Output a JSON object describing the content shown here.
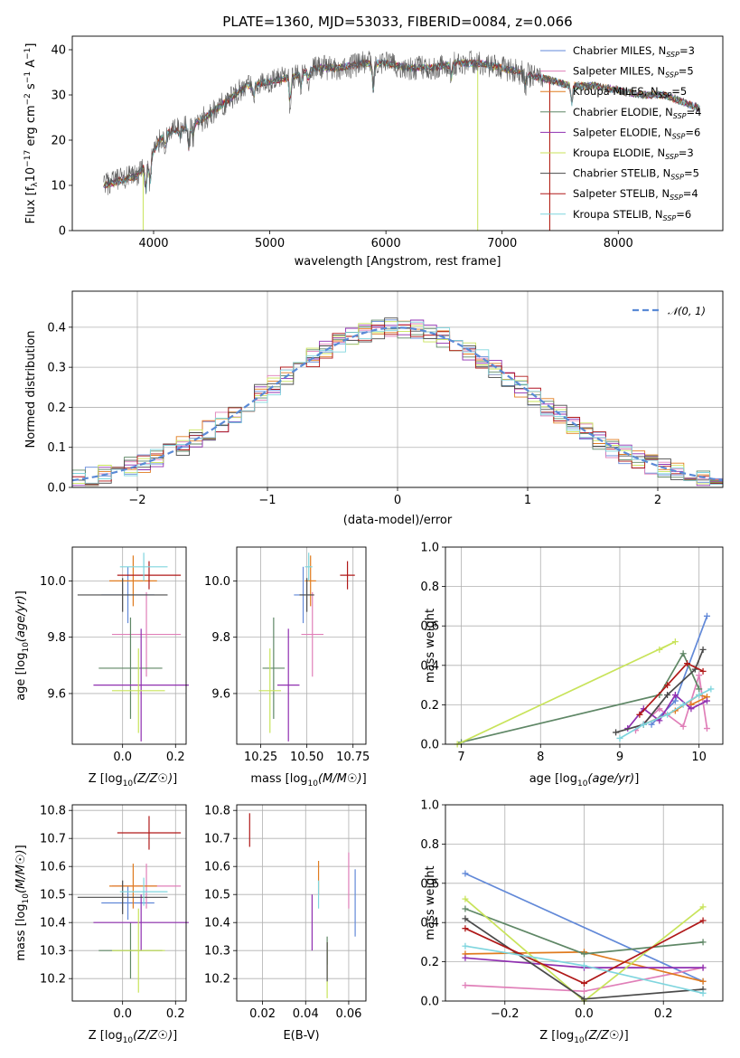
{
  "title": "PLATE=1360, MJD=53033, FIBERID=0084, z=0.066",
  "colors": {
    "chabrier_miles": "#6289d8",
    "salpeter_miles": "#e07fb8",
    "kroupa_miles": "#e07b1f",
    "chabrier_elodie": "#5f8766",
    "salpeter_elodie": "#8f2fb0",
    "kroupa_elodie": "#c8e35a",
    "chabrier_stelib": "#4a4a4a",
    "salpeter_stelib": "#b01919",
    "kroupa_stelib": "#7fd5de"
  },
  "legend": [
    {
      "text": "Chabrier MILES, N",
      "sub": "SSP",
      "tail": "=3",
      "color_key": "chabrier_miles"
    },
    {
      "text": "Salpeter MILES, N",
      "sub": "SSP",
      "tail": "=5",
      "color_key": "salpeter_miles"
    },
    {
      "text": "Kroupa MILES, N",
      "sub": "SSP",
      "tail": "=5",
      "color_key": "kroupa_miles"
    },
    {
      "text": "Chabrier ELODIE, N",
      "sub": "SSP",
      "tail": "=4",
      "color_key": "chabrier_elodie"
    },
    {
      "text": "Salpeter ELODIE, N",
      "sub": "SSP",
      "tail": "=6",
      "color_key": "salpeter_elodie"
    },
    {
      "text": "Kroupa ELODIE, N",
      "sub": "SSP",
      "tail": "=3",
      "color_key": "kroupa_elodie"
    },
    {
      "text": "Chabrier STELIB, N",
      "sub": "SSP",
      "tail": "=5",
      "color_key": "chabrier_stelib"
    },
    {
      "text": "Salpeter STELIB, N",
      "sub": "SSP",
      "tail": "=4",
      "color_key": "salpeter_stelib"
    },
    {
      "text": "Kroupa STELIB, N",
      "sub": "SSP",
      "tail": "=6",
      "color_key": "kroupa_stelib"
    }
  ],
  "chart_data": [
    {
      "type": "line",
      "name": "spectrum",
      "xlabel": "wavelength [Angstrom, rest frame]",
      "ylabel": "Flux [fλ10⁻¹⁷ erg cm⁻² s⁻¹ A⁻¹]",
      "xlim": [
        3300,
        8900
      ],
      "ylim": [
        0,
        43
      ],
      "xticks": [
        "4000",
        "5000",
        "6000",
        "7000",
        "8000"
      ],
      "yticks": [
        "0",
        "10",
        "20",
        "30",
        "40"
      ],
      "continuum": [
        [
          3570,
          10
        ],
        [
          3700,
          11
        ],
        [
          3850,
          12
        ],
        [
          3950,
          15
        ],
        [
          4050,
          20
        ],
        [
          4150,
          22
        ],
        [
          4300,
          23
        ],
        [
          4450,
          25
        ],
        [
          4600,
          28
        ],
        [
          4800,
          32
        ],
        [
          5000,
          33
        ],
        [
          5200,
          34
        ],
        [
          5400,
          36
        ],
        [
          5600,
          36
        ],
        [
          5800,
          37
        ],
        [
          6000,
          37
        ],
        [
          6200,
          36
        ],
        [
          6400,
          36
        ],
        [
          6600,
          37
        ],
        [
          6800,
          37
        ],
        [
          7000,
          36
        ],
        [
          7150,
          35
        ],
        [
          7300,
          34
        ],
        [
          7450,
          33
        ],
        [
          7600,
          32
        ],
        [
          7800,
          32
        ],
        [
          8000,
          31
        ],
        [
          8200,
          30
        ],
        [
          8400,
          30
        ],
        [
          8600,
          28
        ],
        [
          8700,
          27
        ]
      ],
      "absorption_features": [
        [
          3934,
          6
        ],
        [
          3969,
          6
        ],
        [
          4102,
          3
        ],
        [
          4226,
          2
        ],
        [
          4304,
          5
        ],
        [
          4340,
          3
        ],
        [
          4861,
          3
        ],
        [
          5175,
          6
        ],
        [
          5270,
          3
        ],
        [
          5335,
          2
        ],
        [
          5890,
          6
        ],
        [
          6563,
          3
        ],
        [
          7200,
          3
        ],
        [
          7600,
          4
        ]
      ],
      "artifacts": [
        [
          3910,
          0
        ],
        [
          6790,
          0
        ],
        [
          7410,
          0
        ]
      ],
      "noise_amplitude": 2.8,
      "noise_floor": 1.0,
      "noise_x_max": 7350,
      "grid": false,
      "legend": "top-right"
    },
    {
      "type": "histogram",
      "name": "residuals",
      "xlabel": "(data-model)/error",
      "ylabel": "Normed distribution",
      "xlim": [
        -2.5,
        2.5
      ],
      "ylim": [
        0,
        0.49
      ],
      "xticks": [
        -2,
        -1,
        0,
        1,
        2
      ],
      "yticks": [
        0.0,
        0.1,
        0.2,
        0.3,
        0.4
      ],
      "bin_width": 0.1,
      "grid": true,
      "legend_text": "𝒩(0, 1)",
      "gaussian": {
        "mean": 0,
        "sigma": 1,
        "color": "#5a8ad6",
        "style": "dashed"
      },
      "legend": "top-right"
    },
    {
      "type": "errorbar",
      "name": "age_vs_Z",
      "xlabel": "Z [log10(Z/Z☉)]",
      "ylabel": "age  [log10(age/yr)]",
      "xlim": [
        -0.19,
        0.24
      ],
      "ylim": [
        9.42,
        10.12
      ],
      "xticks": [
        "0.0",
        "0.2"
      ],
      "yticks": [
        "9.6",
        "9.8",
        "10.0"
      ],
      "points": [
        {
          "color_key": "chabrier_miles",
          "x": 0.02,
          "xerr": 0.1,
          "y": 9.95,
          "yerr": 0.1
        },
        {
          "color_key": "salpeter_miles",
          "x": 0.09,
          "xerr": 0.13,
          "y": 9.81,
          "yerr": 0.15
        },
        {
          "color_key": "kroupa_miles",
          "x": 0.04,
          "xerr": 0.09,
          "y": 10.0,
          "yerr": 0.09
        },
        {
          "color_key": "chabrier_elodie",
          "x": 0.03,
          "xerr": 0.12,
          "y": 9.69,
          "yerr": 0.18
        },
        {
          "color_key": "salpeter_elodie",
          "x": 0.07,
          "xerr": 0.18,
          "y": 9.63,
          "yerr": 0.2
        },
        {
          "color_key": "kroupa_elodie",
          "x": 0.06,
          "xerr": 0.1,
          "y": 9.61,
          "yerr": 0.15
        },
        {
          "color_key": "chabrier_stelib",
          "x": 0.0,
          "xerr": 0.17,
          "y": 9.95,
          "yerr": 0.06
        },
        {
          "color_key": "salpeter_stelib",
          "x": 0.1,
          "xerr": 0.12,
          "y": 10.02,
          "yerr": 0.05
        },
        {
          "color_key": "kroupa_stelib",
          "x": 0.08,
          "xerr": 0.09,
          "y": 10.05,
          "yerr": 0.05
        }
      ],
      "grid": true
    },
    {
      "type": "errorbar",
      "name": "age_vs_mass",
      "xlabel": "mass [log10(M/M☉)]",
      "ylabel": "",
      "xlim": [
        10.12,
        10.82
      ],
      "ylim": [
        9.42,
        10.12
      ],
      "xticks": [
        "10.25",
        "10.50",
        "10.75"
      ],
      "yticks": [
        "9.6",
        "9.8",
        "10.0"
      ],
      "points": [
        {
          "color_key": "chabrier_miles",
          "x": 10.48,
          "xerr": 0.05,
          "y": 9.95,
          "yerr": 0.1
        },
        {
          "color_key": "salpeter_miles",
          "x": 10.53,
          "xerr": 0.06,
          "y": 9.81,
          "yerr": 0.15
        },
        {
          "color_key": "kroupa_miles",
          "x": 10.52,
          "xerr": 0.03,
          "y": 10.0,
          "yerr": 0.09
        },
        {
          "color_key": "chabrier_elodie",
          "x": 10.32,
          "xerr": 0.06,
          "y": 9.69,
          "yerr": 0.18
        },
        {
          "color_key": "salpeter_elodie",
          "x": 10.4,
          "xerr": 0.06,
          "y": 9.63,
          "yerr": 0.2
        },
        {
          "color_key": "kroupa_elodie",
          "x": 10.3,
          "xerr": 0.06,
          "y": 9.61,
          "yerr": 0.15
        },
        {
          "color_key": "chabrier_stelib",
          "x": 10.5,
          "xerr": 0.04,
          "y": 9.95,
          "yerr": 0.06
        },
        {
          "color_key": "salpeter_stelib",
          "x": 10.72,
          "xerr": 0.04,
          "y": 10.02,
          "yerr": 0.05
        },
        {
          "color_key": "kroupa_stelib",
          "x": 10.51,
          "xerr": 0.02,
          "y": 10.05,
          "yerr": 0.05
        }
      ],
      "grid": true
    },
    {
      "type": "line",
      "name": "mass_weight_vs_age",
      "xlabel": "age  [log10(age/yr)]",
      "ylabel": "mass weight",
      "xlim": [
        6.8,
        10.3
      ],
      "ylim": [
        0,
        1
      ],
      "xticks": [
        "7",
        "8",
        "9",
        "10"
      ],
      "yticks": [
        "0.0",
        "0.2",
        "0.4",
        "0.6",
        "0.8",
        "1.0"
      ],
      "series": [
        {
          "color_key": "chabrier_miles",
          "points": [
            [
              9.4,
              0.1
            ],
            [
              9.7,
              0.22
            ],
            [
              10.1,
              0.65
            ]
          ]
        },
        {
          "color_key": "salpeter_miles",
          "points": [
            [
              9.2,
              0.07
            ],
            [
              9.5,
              0.18
            ],
            [
              9.8,
              0.09
            ],
            [
              10.0,
              0.35
            ],
            [
              10.1,
              0.08
            ]
          ]
        },
        {
          "color_key": "kroupa_miles",
          "points": [
            [
              9.3,
              0.1
            ],
            [
              9.7,
              0.17
            ],
            [
              10.0,
              0.25
            ],
            [
              10.1,
              0.24
            ],
            [
              9.9,
              0.2
            ]
          ]
        },
        {
          "color_key": "chabrier_elodie",
          "points": [
            [
              7.0,
              0.01
            ],
            [
              9.5,
              0.25
            ],
            [
              9.8,
              0.46
            ],
            [
              10.0,
              0.28
            ]
          ]
        },
        {
          "color_key": "salpeter_elodie",
          "points": [
            [
              9.1,
              0.08
            ],
            [
              9.3,
              0.18
            ],
            [
              9.5,
              0.12
            ],
            [
              9.7,
              0.25
            ],
            [
              9.9,
              0.18
            ],
            [
              10.1,
              0.22
            ]
          ]
        },
        {
          "color_key": "kroupa_elodie",
          "points": [
            [
              6.95,
              0.0
            ],
            [
              9.7,
              0.52
            ],
            [
              9.5,
              0.48
            ]
          ]
        },
        {
          "color_key": "chabrier_stelib",
          "points": [
            [
              8.95,
              0.06
            ],
            [
              9.3,
              0.1
            ],
            [
              9.6,
              0.25
            ],
            [
              9.95,
              0.38
            ],
            [
              10.05,
              0.48
            ]
          ]
        },
        {
          "color_key": "salpeter_stelib",
          "points": [
            [
              9.25,
              0.15
            ],
            [
              9.6,
              0.3
            ],
            [
              9.85,
              0.41
            ],
            [
              10.05,
              0.37
            ]
          ]
        },
        {
          "color_key": "kroupa_stelib",
          "points": [
            [
              9.0,
              0.03
            ],
            [
              9.3,
              0.1
            ],
            [
              9.6,
              0.15
            ],
            [
              9.8,
              0.2
            ],
            [
              10.0,
              0.25
            ],
            [
              10.15,
              0.28
            ]
          ]
        }
      ],
      "grid": true
    },
    {
      "type": "errorbar",
      "name": "mass_vs_Z",
      "xlabel": "Z [log10(Z/Z☉)]",
      "ylabel": "mass [log10(M/M☉)]",
      "xlim": [
        -0.19,
        0.24
      ],
      "ylim": [
        10.12,
        10.82
      ],
      "xticks": [
        "0.0",
        "0.2"
      ],
      "yticks": [
        "10.2",
        "10.3",
        "10.4",
        "10.5",
        "10.6",
        "10.7",
        "10.8"
      ],
      "points": [
        {
          "color_key": "chabrier_miles",
          "x": 0.02,
          "xerr": 0.1,
          "y": 10.47,
          "yerr": 0.06
        },
        {
          "color_key": "salpeter_miles",
          "x": 0.09,
          "xerr": 0.13,
          "y": 10.53,
          "yerr": 0.08
        },
        {
          "color_key": "kroupa_miles",
          "x": 0.04,
          "xerr": 0.09,
          "y": 10.53,
          "yerr": 0.08
        },
        {
          "color_key": "chabrier_elodie",
          "x": 0.03,
          "xerr": 0.12,
          "y": 10.3,
          "yerr": 0.1
        },
        {
          "color_key": "salpeter_elodie",
          "x": 0.07,
          "xerr": 0.18,
          "y": 10.4,
          "yerr": 0.1
        },
        {
          "color_key": "kroupa_elodie",
          "x": 0.06,
          "xerr": 0.1,
          "y": 10.3,
          "yerr": 0.15
        },
        {
          "color_key": "chabrier_stelib",
          "x": 0.0,
          "xerr": 0.17,
          "y": 10.49,
          "yerr": 0.06
        },
        {
          "color_key": "salpeter_stelib",
          "x": 0.1,
          "xerr": 0.12,
          "y": 10.72,
          "yerr": 0.06
        },
        {
          "color_key": "kroupa_stelib",
          "x": 0.08,
          "xerr": 0.09,
          "y": 10.51,
          "yerr": 0.05
        }
      ],
      "grid": true
    },
    {
      "type": "errorbar",
      "name": "mass_vs_ebv",
      "xlabel": "E(B-V)",
      "ylabel": "",
      "xlim": [
        0.008,
        0.068
      ],
      "ylim": [
        10.12,
        10.82
      ],
      "xticks": [
        "0.02",
        "0.04",
        "0.06"
      ],
      "yticks": [
        "10.2",
        "10.3",
        "10.4",
        "10.5",
        "10.6",
        "10.7",
        "10.8"
      ],
      "points": [
        {
          "color_key": "chabrier_miles",
          "x": 0.063,
          "xerr": 0.0,
          "y": 10.47,
          "yerr": 0.12
        },
        {
          "color_key": "salpeter_miles",
          "x": 0.06,
          "xerr": 0.0,
          "y": 10.55,
          "yerr": 0.1
        },
        {
          "color_key": "kroupa_miles",
          "x": 0.046,
          "xerr": 0.0,
          "y": 10.56,
          "yerr": 0.06
        },
        {
          "color_key": "chabrier_elodie",
          "x": 0.05,
          "xerr": 0.0,
          "y": 10.3,
          "yerr": 0.05
        },
        {
          "color_key": "salpeter_elodie",
          "x": 0.043,
          "xerr": 0.0,
          "y": 10.4,
          "yerr": 0.1
        },
        {
          "color_key": "kroupa_elodie",
          "x": 0.05,
          "xerr": 0.0,
          "y": 10.23,
          "yerr": 0.1
        },
        {
          "color_key": "chabrier_stelib",
          "x": 0.05,
          "xerr": 0.0,
          "y": 10.26,
          "yerr": 0.07
        },
        {
          "color_key": "salpeter_stelib",
          "x": 0.014,
          "xerr": 0.0,
          "y": 10.73,
          "yerr": 0.06
        },
        {
          "color_key": "kroupa_stelib",
          "x": 0.046,
          "xerr": 0.0,
          "y": 10.5,
          "yerr": 0.05
        }
      ],
      "grid": true
    },
    {
      "type": "line",
      "name": "mass_weight_vs_Z",
      "xlabel": "Z [log10(Z/Z☉)]",
      "ylabel": "mass weight",
      "xlim": [
        -0.35,
        0.35
      ],
      "ylim": [
        0,
        1
      ],
      "xticks": [
        "−0.2",
        "0.0",
        "0.2"
      ],
      "yticks": [
        "0.0",
        "0.2",
        "0.4",
        "0.6",
        "0.8",
        "1.0"
      ],
      "series": [
        {
          "color_key": "chabrier_miles",
          "points": [
            [
              -0.3,
              0.65
            ],
            [
              0.3,
              0.1
            ]
          ]
        },
        {
          "color_key": "salpeter_miles",
          "points": [
            [
              -0.3,
              0.08
            ],
            [
              0.0,
              0.05
            ],
            [
              0.3,
              0.17
            ]
          ]
        },
        {
          "color_key": "kroupa_miles",
          "points": [
            [
              -0.3,
              0.24
            ],
            [
              0.0,
              0.25
            ],
            [
              0.3,
              0.1
            ]
          ]
        },
        {
          "color_key": "chabrier_elodie",
          "points": [
            [
              -0.3,
              0.47
            ],
            [
              0.0,
              0.24
            ],
            [
              0.3,
              0.3
            ]
          ]
        },
        {
          "color_key": "salpeter_elodie",
          "points": [
            [
              -0.3,
              0.22
            ],
            [
              0.0,
              0.17
            ],
            [
              0.3,
              0.17
            ]
          ]
        },
        {
          "color_key": "kroupa_elodie",
          "points": [
            [
              -0.3,
              0.52
            ],
            [
              0.0,
              0.0
            ],
            [
              0.3,
              0.48
            ]
          ]
        },
        {
          "color_key": "chabrier_stelib",
          "points": [
            [
              -0.3,
              0.42
            ],
            [
              0.0,
              0.01
            ],
            [
              0.3,
              0.06
            ]
          ]
        },
        {
          "color_key": "salpeter_stelib",
          "points": [
            [
              -0.3,
              0.37
            ],
            [
              0.0,
              0.09
            ],
            [
              0.3,
              0.41
            ]
          ]
        },
        {
          "color_key": "kroupa_stelib",
          "points": [
            [
              -0.3,
              0.28
            ],
            [
              0.0,
              0.18
            ],
            [
              0.3,
              0.04
            ]
          ]
        }
      ],
      "grid": true
    }
  ]
}
